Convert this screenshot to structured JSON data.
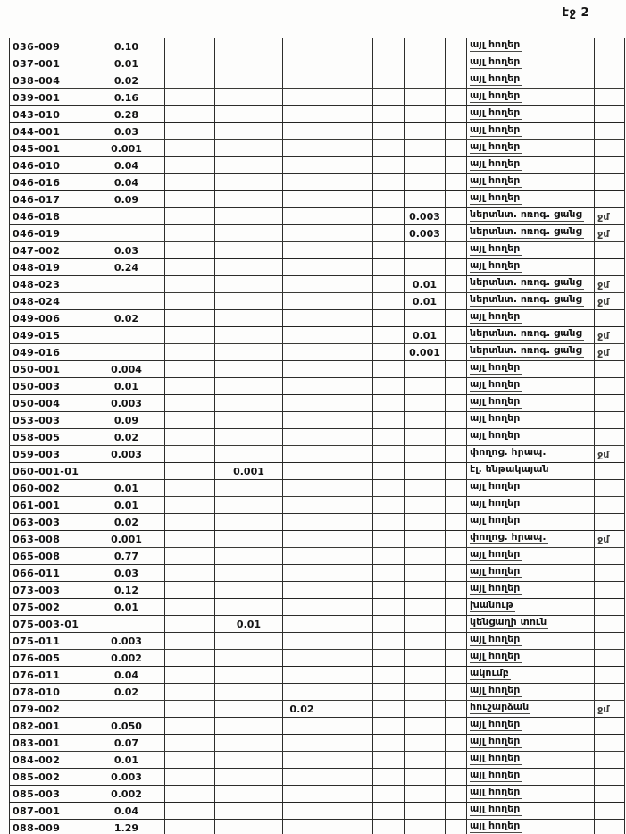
{
  "page": {
    "header": "էջ 2"
  },
  "table": {
    "rows": [
      {
        "code": "036-009",
        "v1": "0.10",
        "v2": "",
        "v3": "",
        "v4": "",
        "label": "այլ հողեր",
        "note": ""
      },
      {
        "code": "037-001",
        "v1": "0.01",
        "v2": "",
        "v3": "",
        "v4": "",
        "label": "այլ հողեր",
        "note": ""
      },
      {
        "code": "038-004",
        "v1": "0.02",
        "v2": "",
        "v3": "",
        "v4": "",
        "label": "այլ հողեր",
        "note": ""
      },
      {
        "code": "039-001",
        "v1": "0.16",
        "v2": "",
        "v3": "",
        "v4": "",
        "label": "այլ հողեր",
        "note": ""
      },
      {
        "code": "043-010",
        "v1": "0.28",
        "v2": "",
        "v3": "",
        "v4": "",
        "label": "այլ հողեր",
        "note": ""
      },
      {
        "code": "044-001",
        "v1": "0.03",
        "v2": "",
        "v3": "",
        "v4": "",
        "label": "այլ հողեր",
        "note": ""
      },
      {
        "code": "045-001",
        "v1": "0.001",
        "v2": "",
        "v3": "",
        "v4": "",
        "label": "այլ հողեր",
        "note": ""
      },
      {
        "code": "046-010",
        "v1": "0.04",
        "v2": "",
        "v3": "",
        "v4": "",
        "label": "այլ հողեր",
        "note": ""
      },
      {
        "code": "046-016",
        "v1": "0.04",
        "v2": "",
        "v3": "",
        "v4": "",
        "label": "այլ հողեր",
        "note": ""
      },
      {
        "code": "046-017",
        "v1": "0.09",
        "v2": "",
        "v3": "",
        "v4": "",
        "label": "այլ հողեր",
        "note": ""
      },
      {
        "code": "046-018",
        "v1": "",
        "v2": "",
        "v3": "",
        "v4": "0.003",
        "label": "ներտնտ. ոռոգ. ցանց",
        "note": "ջմ"
      },
      {
        "code": "046-019",
        "v1": "",
        "v2": "",
        "v3": "",
        "v4": "0.003",
        "label": "ներտնտ. ոռոգ. ցանց",
        "note": "ջմ"
      },
      {
        "code": "047-002",
        "v1": "0.03",
        "v2": "",
        "v3": "",
        "v4": "",
        "label": "այլ հողեր",
        "note": ""
      },
      {
        "code": "048-019",
        "v1": "0.24",
        "v2": "",
        "v3": "",
        "v4": "",
        "label": "այլ հողեր",
        "note": ""
      },
      {
        "code": "048-023",
        "v1": "",
        "v2": "",
        "v3": "",
        "v4": "0.01",
        "label": "ներտնտ. ոռոգ. ցանց",
        "note": "ջմ"
      },
      {
        "code": "048-024",
        "v1": "",
        "v2": "",
        "v3": "",
        "v4": "0.01",
        "label": "ներտնտ. ոռոգ. ցանց",
        "note": "ջմ"
      },
      {
        "code": "049-006",
        "v1": "0.02",
        "v2": "",
        "v3": "",
        "v4": "",
        "label": "այլ հողեր",
        "note": ""
      },
      {
        "code": "049-015",
        "v1": "",
        "v2": "",
        "v3": "",
        "v4": "0.01",
        "label": "ներտնտ. ոռոգ. ցանց",
        "note": "ջմ"
      },
      {
        "code": "049-016",
        "v1": "",
        "v2": "",
        "v3": "",
        "v4": "0.001",
        "label": "ներտնտ. ոռոգ. ցանց",
        "note": "ջմ"
      },
      {
        "code": "050-001",
        "v1": "0.004",
        "v2": "",
        "v3": "",
        "v4": "",
        "label": "այլ հողեր",
        "note": ""
      },
      {
        "code": "050-003",
        "v1": "0.01",
        "v2": "",
        "v3": "",
        "v4": "",
        "label": "այլ հողեր",
        "note": ""
      },
      {
        "code": "050-004",
        "v1": "0.003",
        "v2": "",
        "v3": "",
        "v4": "",
        "label": "այլ հողեր",
        "note": ""
      },
      {
        "code": "053-003",
        "v1": "0.09",
        "v2": "",
        "v3": "",
        "v4": "",
        "label": "այլ հողեր",
        "note": ""
      },
      {
        "code": "058-005",
        "v1": "0.02",
        "v2": "",
        "v3": "",
        "v4": "",
        "label": "այլ հողեր",
        "note": ""
      },
      {
        "code": "059-003",
        "v1": "0.003",
        "v2": "",
        "v3": "",
        "v4": "",
        "label": "փողոց. հրապ.",
        "note": "ջմ"
      },
      {
        "code": "060-001-01",
        "v1": "",
        "v2": "0.001",
        "v3": "",
        "v4": "",
        "label": "էլ. ենթակայան",
        "note": ""
      },
      {
        "code": "060-002",
        "v1": "0.01",
        "v2": "",
        "v3": "",
        "v4": "",
        "label": "այլ հողեր",
        "note": ""
      },
      {
        "code": "061-001",
        "v1": "0.01",
        "v2": "",
        "v3": "",
        "v4": "",
        "label": "այլ հողեր",
        "note": ""
      },
      {
        "code": "063-003",
        "v1": "0.02",
        "v2": "",
        "v3": "",
        "v4": "",
        "label": "այլ հողեր",
        "note": ""
      },
      {
        "code": "063-008",
        "v1": "0.001",
        "v2": "",
        "v3": "",
        "v4": "",
        "label": "փողոց. հրապ.",
        "note": "ջմ"
      },
      {
        "code": "065-008",
        "v1": "0.77",
        "v2": "",
        "v3": "",
        "v4": "",
        "label": "այլ հողեր",
        "note": ""
      },
      {
        "code": "066-011",
        "v1": "0.03",
        "v2": "",
        "v3": "",
        "v4": "",
        "label": "այլ հողեր",
        "note": ""
      },
      {
        "code": "073-003",
        "v1": "0.12",
        "v2": "",
        "v3": "",
        "v4": "",
        "label": "այլ հողեր",
        "note": ""
      },
      {
        "code": "075-002",
        "v1": "0.01",
        "v2": "",
        "v3": "",
        "v4": "",
        "label": "խանութ",
        "note": ""
      },
      {
        "code": "075-003-01",
        "v1": "",
        "v2": "0.01",
        "v3": "",
        "v4": "",
        "label": "կենցաղի տուն",
        "note": ""
      },
      {
        "code": "075-011",
        "v1": "0.003",
        "v2": "",
        "v3": "",
        "v4": "",
        "label": "այլ հողեր",
        "note": ""
      },
      {
        "code": "076-005",
        "v1": "0.002",
        "v2": "",
        "v3": "",
        "v4": "",
        "label": "այլ հողեր",
        "note": ""
      },
      {
        "code": "076-011",
        "v1": "0.04",
        "v2": "",
        "v3": "",
        "v4": "",
        "label": "ակումբ",
        "note": ""
      },
      {
        "code": "078-010",
        "v1": "0.02",
        "v2": "",
        "v3": "",
        "v4": "",
        "label": "այլ հողեր",
        "note": ""
      },
      {
        "code": "079-002",
        "v1": "",
        "v2": "",
        "v3": "0.02",
        "v4": "",
        "label": "հուշարձան",
        "note": "ջմ"
      },
      {
        "code": "082-001",
        "v1": "0.050",
        "v2": "",
        "v3": "",
        "v4": "",
        "label": "այլ հողեր",
        "note": ""
      },
      {
        "code": "083-001",
        "v1": "0.07",
        "v2": "",
        "v3": "",
        "v4": "",
        "label": "այլ հողեր",
        "note": ""
      },
      {
        "code": "084-002",
        "v1": "0.01",
        "v2": "",
        "v3": "",
        "v4": "",
        "label": "այլ հողեր",
        "note": ""
      },
      {
        "code": "085-002",
        "v1": "0.003",
        "v2": "",
        "v3": "",
        "v4": "",
        "label": "այլ հողեր",
        "note": ""
      },
      {
        "code": "085-003",
        "v1": "0.002",
        "v2": "",
        "v3": "",
        "v4": "",
        "label": "այլ հողեր",
        "note": ""
      },
      {
        "code": "087-001",
        "v1": "0.04",
        "v2": "",
        "v3": "",
        "v4": "",
        "label": "այլ հողեր",
        "note": ""
      },
      {
        "code": "088-009",
        "v1": "1.29",
        "v2": "",
        "v3": "",
        "v4": "",
        "label": "այլ հողեր",
        "note": ""
      }
    ]
  }
}
